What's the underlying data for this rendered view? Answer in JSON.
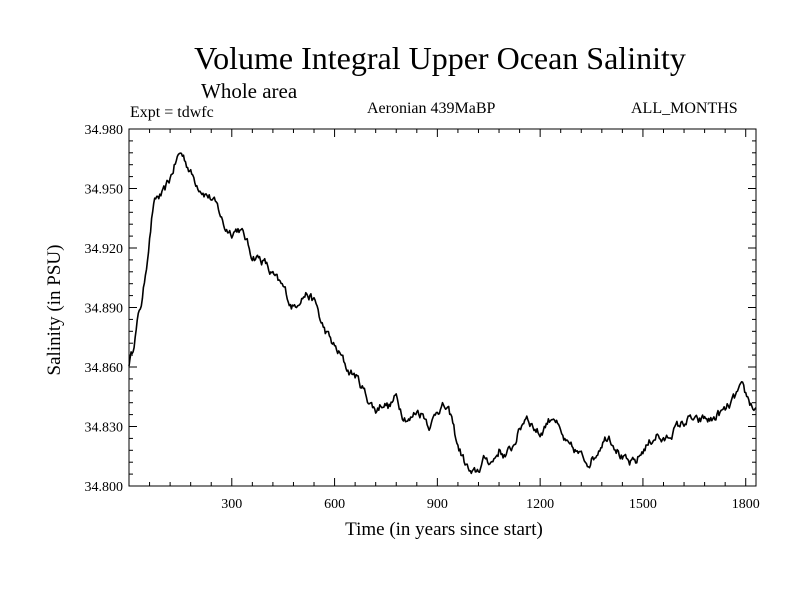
{
  "chart_data": {
    "type": "line",
    "title": "Volume Integral Upper Ocean Salinity",
    "subtitle": "Whole area",
    "experiment": "Expt = tdwfc",
    "period": "Aeronian 439MaBP",
    "months": "ALL_MONTHS",
    "xlabel": "Time (in years since start)",
    "ylabel": "Salinity (in PSU)",
    "xlim": [
      0,
      1830
    ],
    "ylim": [
      34.8,
      34.98
    ],
    "xticks": [
      300,
      600,
      900,
      1200,
      1500,
      1800
    ],
    "xtick_labels": [
      "300",
      "600",
      "900",
      "1200",
      "1500",
      "1800"
    ],
    "yticks": [
      34.8,
      34.83,
      34.86,
      34.89,
      34.92,
      34.95,
      34.98
    ],
    "ytick_labels": [
      "34.800",
      "34.830",
      "34.860",
      "34.890",
      "34.920",
      "34.950",
      "34.980"
    ],
    "series": [
      {
        "name": "Salinity",
        "x": [
          0,
          10,
          20,
          30,
          40,
          50,
          60,
          70,
          80,
          100,
          120,
          130,
          140,
          150,
          160,
          170,
          180,
          190,
          200,
          220,
          240,
          260,
          270,
          280,
          300,
          320,
          340,
          350,
          360,
          380,
          400,
          410,
          420,
          440,
          450,
          460,
          470,
          480,
          500,
          520,
          540,
          550,
          560,
          580,
          600,
          620,
          640,
          660,
          680,
          700,
          720,
          740,
          760,
          780,
          800,
          820,
          840,
          860,
          880,
          900,
          920,
          940,
          960,
          980,
          1000,
          1020,
          1040,
          1060,
          1080,
          1100,
          1120,
          1140,
          1160,
          1180,
          1200,
          1220,
          1240,
          1260,
          1280,
          1300,
          1320,
          1340,
          1360,
          1380,
          1400,
          1420,
          1440,
          1460,
          1480,
          1500,
          1520,
          1540,
          1560,
          1580,
          1600,
          1620,
          1640,
          1660,
          1680,
          1700,
          1720,
          1740,
          1760,
          1780,
          1790,
          1800,
          1810,
          1820,
          1830
        ],
        "values": [
          34.862,
          34.868,
          34.878,
          34.888,
          34.895,
          34.91,
          34.925,
          34.94,
          34.945,
          34.947,
          34.955,
          34.96,
          34.965,
          34.968,
          34.966,
          34.962,
          34.958,
          34.955,
          34.952,
          34.948,
          34.945,
          34.94,
          34.935,
          34.93,
          34.928,
          34.93,
          34.925,
          34.92,
          34.916,
          34.915,
          34.912,
          34.908,
          34.906,
          34.902,
          34.9,
          34.897,
          34.892,
          34.89,
          34.895,
          34.897,
          34.893,
          34.89,
          34.882,
          34.876,
          34.87,
          34.865,
          34.858,
          34.856,
          34.85,
          34.843,
          34.838,
          34.842,
          34.84,
          34.845,
          34.836,
          34.833,
          34.838,
          34.836,
          34.83,
          34.839,
          34.84,
          34.835,
          34.82,
          34.812,
          34.805,
          34.808,
          34.814,
          34.812,
          34.818,
          34.815,
          34.82,
          34.828,
          34.836,
          34.83,
          34.826,
          34.832,
          34.836,
          34.826,
          34.82,
          34.818,
          34.815,
          34.812,
          34.815,
          34.822,
          34.826,
          34.82,
          34.814,
          34.811,
          34.812,
          34.818,
          34.822,
          34.826,
          34.822,
          34.826,
          34.83,
          34.832,
          34.834,
          34.832,
          34.834,
          34.833,
          34.836,
          34.838,
          34.842,
          34.848,
          34.849,
          34.846,
          34.843,
          34.84,
          34.839
        ]
      }
    ]
  }
}
